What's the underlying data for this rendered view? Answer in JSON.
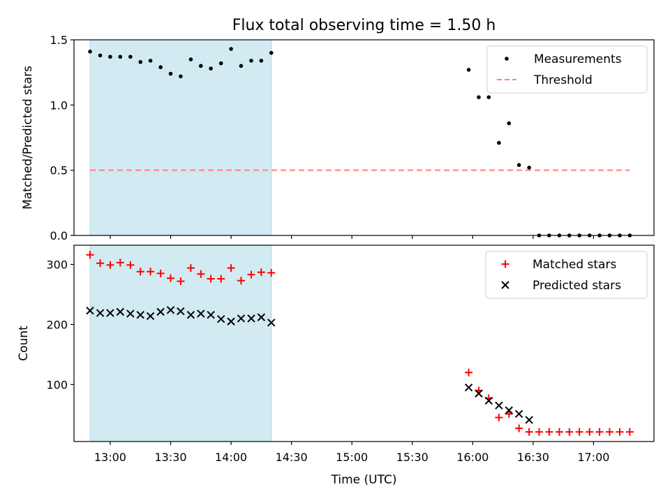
{
  "figure": {
    "title": "Flux total observing time = 1.50 h",
    "xlabel": "Time (UTC)",
    "xticks": [
      "13:00",
      "13:30",
      "14:00",
      "14:30",
      "15:00",
      "15:30",
      "16:00",
      "16:30",
      "17:00"
    ]
  },
  "chart_data": [
    {
      "type": "scatter",
      "id": "ratio",
      "title": "Flux total observing time = 1.50 h",
      "xlabel": "",
      "ylabel": "Matched/Predicted stars",
      "x_unit": "hours UTC",
      "xlim": [
        12.7,
        17.5
      ],
      "ylim": [
        0,
        1.5
      ],
      "yticks": [
        "0.0",
        "0.5",
        "1.0",
        "1.5"
      ],
      "shaded_region": {
        "x": [
          12.8333,
          14.3333
        ],
        "color": "#add8e6"
      },
      "legend": {
        "position": "top-right"
      },
      "series": [
        {
          "name": "Measurements",
          "marker": "dot",
          "color": "#000000",
          "points": [
            [
              12.833,
              1.41
            ],
            [
              12.917,
              1.38
            ],
            [
              13.0,
              1.37
            ],
            [
              13.083,
              1.37
            ],
            [
              13.167,
              1.37
            ],
            [
              13.25,
              1.33
            ],
            [
              13.333,
              1.34
            ],
            [
              13.417,
              1.29
            ],
            [
              13.5,
              1.24
            ],
            [
              13.583,
              1.22
            ],
            [
              13.667,
              1.35
            ],
            [
              13.75,
              1.3
            ],
            [
              13.833,
              1.28
            ],
            [
              13.917,
              1.32
            ],
            [
              14.0,
              1.43
            ],
            [
              14.083,
              1.3
            ],
            [
              14.167,
              1.34
            ],
            [
              14.25,
              1.34
            ],
            [
              14.333,
              1.4
            ],
            [
              15.967,
              1.27
            ],
            [
              16.05,
              1.06
            ],
            [
              16.133,
              1.06
            ],
            [
              16.217,
              0.71
            ],
            [
              16.3,
              0.86
            ],
            [
              16.383,
              0.54
            ],
            [
              16.467,
              0.52
            ],
            [
              16.55,
              0.0
            ],
            [
              16.633,
              0.0
            ],
            [
              16.717,
              0.0
            ],
            [
              16.8,
              0.0
            ],
            [
              16.883,
              0.0
            ],
            [
              16.967,
              0.0
            ],
            [
              17.05,
              0.0
            ],
            [
              17.133,
              0.0
            ],
            [
              17.217,
              0.0
            ],
            [
              17.3,
              0.0
            ]
          ]
        },
        {
          "name": "Threshold",
          "marker": "dashed-line",
          "color": "#ff7f7f",
          "points": [
            [
              12.833,
              0.5
            ],
            [
              17.3,
              0.5
            ]
          ]
        }
      ]
    },
    {
      "type": "scatter",
      "id": "count",
      "xlabel": "Time (UTC)",
      "ylabel": "Count",
      "x_unit": "hours UTC",
      "xlim": [
        12.7,
        17.5
      ],
      "ylim": [
        5,
        332
      ],
      "yticks": [
        "100",
        "200",
        "300"
      ],
      "shaded_region": {
        "x": [
          12.8333,
          14.3333
        ],
        "color": "#add8e6"
      },
      "legend": {
        "position": "top-right"
      },
      "series": [
        {
          "name": "Matched stars",
          "marker": "plus",
          "color": "#ff0000",
          "points": [
            [
              12.833,
              316
            ],
            [
              12.917,
              302
            ],
            [
              13.0,
              299
            ],
            [
              13.083,
              303
            ],
            [
              13.167,
              299
            ],
            [
              13.25,
              288
            ],
            [
              13.333,
              288
            ],
            [
              13.417,
              285
            ],
            [
              13.5,
              277
            ],
            [
              13.583,
              272
            ],
            [
              13.667,
              294
            ],
            [
              13.75,
              284
            ],
            [
              13.833,
              276
            ],
            [
              13.917,
              276
            ],
            [
              14.0,
              294
            ],
            [
              14.083,
              273
            ],
            [
              14.167,
              283
            ],
            [
              14.25,
              287
            ],
            [
              14.333,
              286
            ],
            [
              15.967,
              120
            ],
            [
              16.05,
              90
            ],
            [
              16.133,
              77
            ],
            [
              16.217,
              45
            ],
            [
              16.3,
              51
            ],
            [
              16.383,
              27
            ],
            [
              16.467,
              21
            ],
            [
              16.55,
              21
            ],
            [
              16.633,
              21
            ],
            [
              16.717,
              21
            ],
            [
              16.8,
              21
            ],
            [
              16.883,
              21
            ],
            [
              16.967,
              21
            ],
            [
              17.05,
              21
            ],
            [
              17.133,
              21
            ],
            [
              17.217,
              21
            ],
            [
              17.3,
              21
            ]
          ]
        },
        {
          "name": "Predicted stars",
          "marker": "x",
          "color": "#000000",
          "points": [
            [
              12.833,
              223
            ],
            [
              12.917,
              219
            ],
            [
              13.0,
              219
            ],
            [
              13.083,
              221
            ],
            [
              13.167,
              218
            ],
            [
              13.25,
              216
            ],
            [
              13.333,
              214
            ],
            [
              13.417,
              221
            ],
            [
              13.5,
              224
            ],
            [
              13.583,
              222
            ],
            [
              13.667,
              216
            ],
            [
              13.75,
              218
            ],
            [
              13.833,
              216
            ],
            [
              13.917,
              209
            ],
            [
              14.0,
              205
            ],
            [
              14.083,
              210
            ],
            [
              14.167,
              210
            ],
            [
              14.25,
              212
            ],
            [
              14.333,
              203
            ],
            [
              15.967,
              95
            ],
            [
              16.05,
              85
            ],
            [
              16.133,
              73
            ],
            [
              16.217,
              65
            ],
            [
              16.3,
              57
            ],
            [
              16.383,
              51
            ],
            [
              16.467,
              41
            ]
          ]
        }
      ]
    }
  ]
}
